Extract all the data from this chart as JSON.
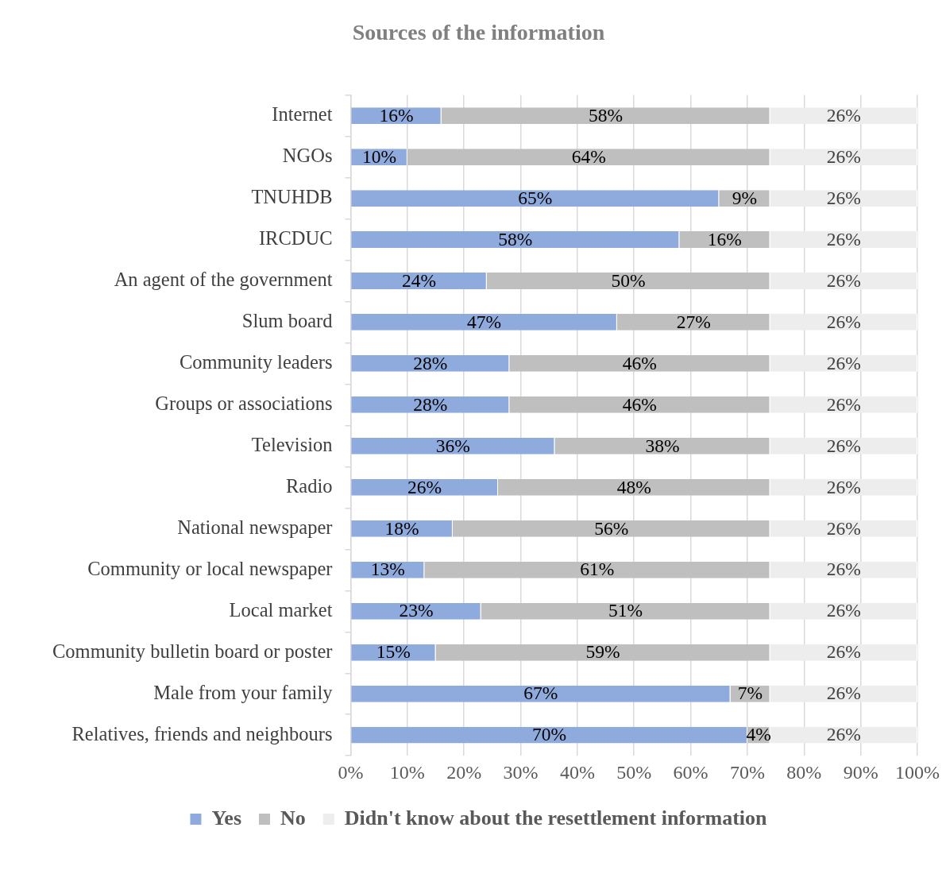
{
  "chart_data": {
    "type": "bar",
    "orientation": "horizontal",
    "stacked": true,
    "title": "Sources of the information",
    "categories": [
      "Internet",
      "NGOs",
      "TNUHDB",
      "IRCDUC",
      "An agent of the government",
      "Slum board",
      "Community leaders",
      "Groups or associations",
      "Television",
      "Radio",
      "National newspaper",
      "Community or local newspaper",
      "Local market",
      "Community bulletin board or poster",
      "Male from your family",
      "Relatives, friends and neighbours"
    ],
    "series": [
      {
        "name": "Yes",
        "color": "#8faadc",
        "values": [
          16,
          10,
          65,
          58,
          24,
          47,
          28,
          28,
          36,
          26,
          18,
          13,
          23,
          15,
          67,
          70
        ],
        "value_labels": [
          "16%",
          "10%",
          "65%",
          "58%",
          "24%",
          "47%",
          "28%",
          "28%",
          "36%",
          "26%",
          "18%",
          "13%",
          "23%",
          "15%",
          "67%",
          "70%"
        ]
      },
      {
        "name": "No",
        "color": "#bfbfbf",
        "values": [
          58,
          64,
          9,
          16,
          50,
          27,
          46,
          46,
          38,
          48,
          56,
          61,
          51,
          59,
          7,
          4
        ],
        "value_labels": [
          "58%",
          "64%",
          "9%",
          "16%",
          "50%",
          "27%",
          "46%",
          "46%",
          "38%",
          "48%",
          "56%",
          "61%",
          "51%",
          "59%",
          "7%",
          "4%"
        ]
      },
      {
        "name": "Didn't know about the resettlement information",
        "color": "#ededed",
        "values": [
          26,
          26,
          26,
          26,
          26,
          26,
          26,
          26,
          26,
          26,
          26,
          26,
          26,
          26,
          26,
          26
        ],
        "value_labels": [
          "26%",
          "26%",
          "26%",
          "26%",
          "26%",
          "26%",
          "26%",
          "26%",
          "26%",
          "26%",
          "26%",
          "26%",
          "26%",
          "26%",
          "26%",
          "26%"
        ]
      }
    ],
    "xlim": [
      0,
      100
    ],
    "xticks": [
      {
        "value": 0,
        "label": "0%"
      },
      {
        "value": 10,
        "label": "10%"
      },
      {
        "value": 20,
        "label": "20%"
      },
      {
        "value": 30,
        "label": "30%"
      },
      {
        "value": 40,
        "label": "40%"
      },
      {
        "value": 50,
        "label": "50%"
      },
      {
        "value": 60,
        "label": "60%"
      },
      {
        "value": 70,
        "label": "70%"
      },
      {
        "value": 80,
        "label": "80%"
      },
      {
        "value": 90,
        "label": "90%"
      },
      {
        "value": 100,
        "label": "100%"
      }
    ],
    "grid": "x",
    "legend": "bottom"
  }
}
